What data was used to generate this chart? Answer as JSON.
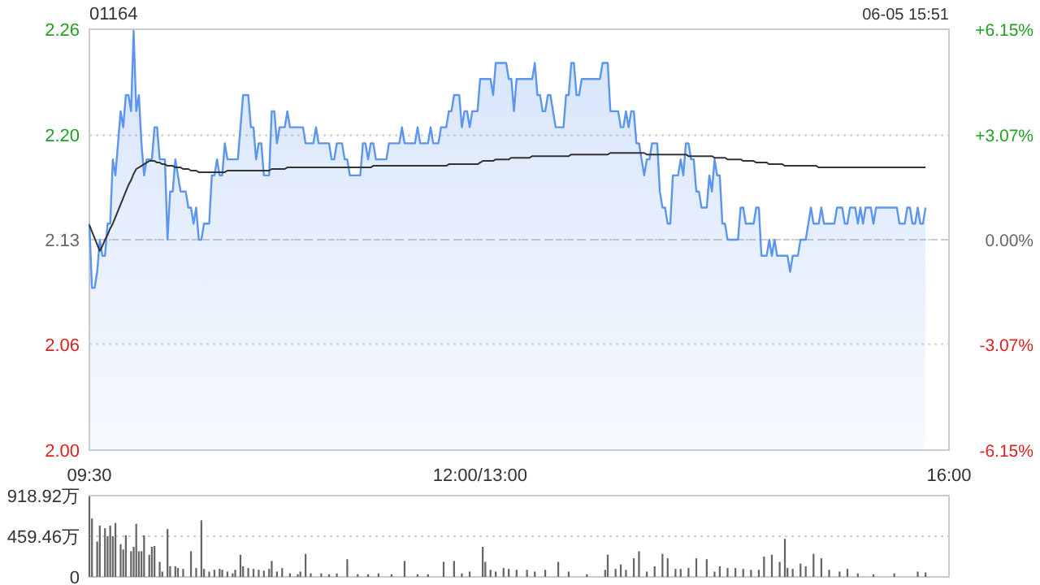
{
  "chart_data": [
    {
      "type": "area",
      "title": "01164",
      "annotations": [
        "06-05 15:51"
      ],
      "categories": [
        "09:30",
        null,
        null,
        null,
        null,
        null,
        null,
        null,
        null,
        null,
        null,
        null,
        null,
        null,
        null,
        null,
        null,
        null,
        null,
        null,
        null,
        null,
        null,
        null,
        null,
        null,
        null,
        null,
        null,
        null,
        null,
        null,
        null,
        null,
        null,
        null,
        null,
        null,
        null,
        null,
        null,
        null,
        null,
        null,
        null,
        null,
        null,
        null,
        null,
        null,
        null,
        null,
        null,
        null,
        null,
        null,
        null,
        null,
        null,
        null,
        null,
        null,
        null,
        null,
        null,
        null,
        null,
        null,
        null,
        null,
        null,
        null,
        null,
        null,
        null,
        null,
        null,
        null,
        null,
        null,
        null,
        null,
        null,
        null,
        null,
        null,
        null,
        null,
        null,
        null,
        null,
        null,
        null,
        null,
        null,
        null,
        null,
        null,
        null,
        null,
        null,
        null,
        null,
        null,
        null,
        null,
        null,
        null,
        null,
        null,
        null,
        null,
        null,
        null,
        null,
        null,
        null,
        null,
        null,
        null,
        null,
        null,
        null,
        null,
        null,
        null,
        null,
        null,
        null,
        null,
        null,
        null,
        null,
        null,
        null,
        null,
        null,
        null,
        null,
        null,
        null,
        null,
        null,
        null,
        null,
        null,
        null,
        null,
        null,
        null,
        "12:00/13:00",
        null,
        null,
        null,
        null,
        null,
        null,
        null,
        null,
        null,
        null,
        null,
        null,
        null,
        null,
        null,
        null,
        null,
        null,
        null,
        null,
        null,
        null,
        null,
        null,
        null,
        null,
        null,
        null,
        null,
        null,
        null,
        null,
        null,
        null,
        null,
        null,
        null,
        null,
        null,
        null,
        null,
        null,
        null,
        null,
        null,
        null,
        null,
        null,
        null,
        null,
        null,
        null,
        null,
        null,
        null,
        null,
        null,
        null,
        null,
        null,
        null,
        null,
        null,
        null,
        null,
        null,
        null,
        null,
        null,
        null,
        null,
        null,
        null,
        null,
        null,
        null,
        null,
        null,
        null,
        null,
        null,
        null,
        null,
        null,
        null,
        null,
        null,
        null,
        null,
        null,
        null,
        null,
        null,
        null,
        null,
        null,
        null,
        null,
        null,
        null,
        null,
        null,
        null,
        null,
        null,
        null,
        null,
        null,
        null,
        null,
        null,
        null,
        null,
        null,
        null,
        null,
        null,
        null,
        null,
        null,
        null,
        null,
        null,
        null,
        null,
        null,
        null,
        null,
        null,
        null,
        null,
        null,
        null,
        null,
        null,
        null,
        null,
        null,
        null,
        null,
        null,
        null,
        null,
        null,
        null,
        null,
        null,
        null,
        null,
        null,
        null,
        null,
        null,
        null,
        null,
        null,
        null,
        null,
        null,
        null,
        null,
        null,
        null,
        null,
        null,
        null,
        null,
        null,
        null,
        null,
        null,
        null,
        null,
        null,
        null,
        null,
        null,
        null,
        null,
        "16:00"
      ],
      "ylim": [
        1.999,
        2.261
      ],
      "yticks": [
        {
          "value": 1.999,
          "label": "2.00"
        },
        {
          "value": 2.065,
          "label": "2.06"
        },
        2.13,
        {
          "value": 2.195,
          "label": "2.20"
        },
        {
          "value": 2.261,
          "label": "2.26"
        }
      ],
      "y2lim": [
        -6.15,
        6.15
      ],
      "y2ticks": [
        {
          "value": -6.15,
          "label": "-6.15%"
        },
        {
          "value": -3.07,
          "label": "-3.07%"
        },
        {
          "value": 0,
          "label": "0.00%"
        },
        {
          "value": 3.07,
          "label": "+3.07%"
        },
        {
          "value": 6.15,
          "label": "+6.15%"
        }
      ],
      "ref_lines": [
        {
          "axis": "y",
          "value": 2.13,
          "line_style": "dashed",
          "color": "#cccccc"
        }
      ],
      "grid": "y",
      "series": [
        {
          "type": "area",
          "color": "#5b95ee",
          "values": [
            2.14,
            2.1,
            2.1,
            2.11,
            2.13,
            2.12,
            2.12,
            2.14,
            2.14,
            2.18,
            2.17,
            2.19,
            2.21,
            2.2,
            2.22,
            2.22,
            2.21,
            2.26,
            2.21,
            2.22,
            2.19,
            2.17,
            2.18,
            2.18,
            2.18,
            2.2,
            2.2,
            2.18,
            2.18,
            2.18,
            2.13,
            2.16,
            2.16,
            2.18,
            2.17,
            2.16,
            2.16,
            2.16,
            2.15,
            2.15,
            2.14,
            2.15,
            2.13,
            2.13,
            2.14,
            2.14,
            2.14,
            2.17,
            2.17,
            2.18,
            2.17,
            2.17,
            2.19,
            2.18,
            2.18,
            2.18,
            2.18,
            2.18,
            2.2,
            2.22,
            2.22,
            2.22,
            2.2,
            2.2,
            2.18,
            2.19,
            2.19,
            2.17,
            2.17,
            2.17,
            2.21,
            2.21,
            2.19,
            2.2,
            2.2,
            2.2,
            2.21,
            2.2,
            2.2,
            2.2,
            2.2,
            2.2,
            2.2,
            2.19,
            2.19,
            2.19,
            2.19,
            2.2,
            2.19,
            2.19,
            2.19,
            2.19,
            2.19,
            2.18,
            2.18,
            2.19,
            2.19,
            2.19,
            2.18,
            2.18,
            2.17,
            2.17,
            2.17,
            2.17,
            2.17,
            2.19,
            2.19,
            2.18,
            2.19,
            2.19,
            2.18,
            2.18,
            2.18,
            2.18,
            2.18,
            2.19,
            2.19,
            2.19,
            2.19,
            2.19,
            2.2,
            2.19,
            2.19,
            2.19,
            2.19,
            2.19,
            2.2,
            2.19,
            2.19,
            2.19,
            2.19,
            2.2,
            2.19,
            2.19,
            2.19,
            2.2,
            2.2,
            2.2,
            2.21,
            2.21,
            2.22,
            2.22,
            2.22,
            2.2,
            2.21,
            2.21,
            2.2,
            2.21,
            2.21,
            2.21,
            2.23,
            2.23,
            2.23,
            2.23,
            2.23,
            2.22,
            2.24,
            2.24,
            2.24,
            2.24,
            2.24,
            2.23,
            2.23,
            2.21,
            2.23,
            2.23,
            2.23,
            2.23,
            2.23,
            2.23,
            2.23,
            2.24,
            2.22,
            2.22,
            2.21,
            2.21,
            2.22,
            2.22,
            2.21,
            2.2,
            2.2,
            2.2,
            2.2,
            2.22,
            2.22,
            2.24,
            2.24,
            2.22,
            2.22,
            2.23,
            2.23,
            2.23,
            2.23,
            2.23,
            2.23,
            2.23,
            2.23,
            2.24,
            2.24,
            2.24,
            2.21,
            2.21,
            2.21,
            2.21,
            2.2,
            2.2,
            2.21,
            2.2,
            2.21,
            2.21,
            2.19,
            2.19,
            2.18,
            2.17,
            2.18,
            2.18,
            2.19,
            2.19,
            2.19,
            2.16,
            2.15,
            2.15,
            2.14,
            2.14,
            2.17,
            2.17,
            2.17,
            2.18,
            2.17,
            2.19,
            2.19,
            2.18,
            2.18,
            2.16,
            2.16,
            2.15,
            2.15,
            2.15,
            2.17,
            2.16,
            2.18,
            2.17,
            2.17,
            2.14,
            2.14,
            2.13,
            2.13,
            2.13,
            2.13,
            2.13,
            2.15,
            2.15,
            2.14,
            2.14,
            2.14,
            2.14,
            2.15,
            2.15,
            2.12,
            2.12,
            2.12,
            2.13,
            2.12,
            2.13,
            2.12,
            2.12,
            2.12,
            2.12,
            2.12,
            2.11,
            2.12,
            2.12,
            2.12,
            2.13,
            2.13,
            2.13,
            2.14,
            2.15,
            2.14,
            2.14,
            2.14,
            2.15,
            2.14,
            2.14,
            2.14,
            2.14,
            2.14,
            2.15,
            2.15,
            2.15,
            2.14,
            2.14,
            2.15,
            2.15,
            2.15,
            2.14,
            2.15,
            2.14,
            2.15,
            2.15,
            2.15,
            2.14,
            2.15,
            2.15,
            2.15,
            2.15,
            2.15,
            2.15,
            2.15,
            2.15,
            2.15,
            2.14,
            2.14,
            2.14,
            2.15,
            2.15,
            2.14,
            2.14,
            2.15,
            2.14,
            2.14,
            2.15,
            null,
            null,
            null,
            null,
            null,
            null,
            null,
            null,
            null
          ]
        },
        {
          "type": "line",
          "color": "#333333",
          "values": [
            2.139,
            2.135,
            2.131,
            2.127,
            2.123,
            2.126,
            2.13,
            2.133,
            2.137,
            2.14,
            2.144,
            2.148,
            2.152,
            2.156,
            2.16,
            2.164,
            2.167,
            2.171,
            2.174,
            2.175,
            2.176,
            2.177,
            2.178,
            2.179,
            2.179,
            2.179,
            2.178,
            2.178,
            2.177,
            2.177,
            2.176,
            2.176,
            2.176,
            2.175,
            2.175,
            2.175,
            2.174,
            2.174,
            2.174,
            2.173,
            2.173,
            2.173,
            2.172,
            2.172,
            2.172,
            2.172,
            2.172,
            2.172,
            2.172,
            2.172,
            2.172,
            2.172,
            2.172,
            2.173,
            2.173,
            2.173,
            2.173,
            2.173,
            2.173,
            2.173,
            2.173,
            2.173,
            2.173,
            2.173,
            2.173,
            2.173,
            2.173,
            2.173,
            2.173,
            2.173,
            2.174,
            2.174,
            2.174,
            2.174,
            2.174,
            2.174,
            2.175,
            2.175,
            2.175,
            2.175,
            2.175,
            2.175,
            2.175,
            2.175,
            2.175,
            2.175,
            2.175,
            2.175,
            2.175,
            2.175,
            2.175,
            2.175,
            2.175,
            2.175,
            2.175,
            2.175,
            2.175,
            2.175,
            2.175,
            2.175,
            2.175,
            2.175,
            2.175,
            2.175,
            2.175,
            2.175,
            2.175,
            2.175,
            2.175,
            2.176,
            2.176,
            2.176,
            2.176,
            2.176,
            2.176,
            2.176,
            2.176,
            2.176,
            2.176,
            2.176,
            2.176,
            2.176,
            2.176,
            2.176,
            2.176,
            2.176,
            2.176,
            2.176,
            2.176,
            2.176,
            2.176,
            2.176,
            2.176,
            2.176,
            2.176,
            2.176,
            2.176,
            2.176,
            2.177,
            2.177,
            2.177,
            2.177,
            2.177,
            2.177,
            2.177,
            2.177,
            2.177,
            2.177,
            2.177,
            2.177,
            2.178,
            2.179,
            2.179,
            2.179,
            2.179,
            2.179,
            2.18,
            2.18,
            2.18,
            2.18,
            2.18,
            2.18,
            2.181,
            2.181,
            2.181,
            2.181,
            2.181,
            2.181,
            2.181,
            2.181,
            2.182,
            2.182,
            2.182,
            2.182,
            2.182,
            2.182,
            2.182,
            2.182,
            2.182,
            2.182,
            2.182,
            2.182,
            2.182,
            2.182,
            2.182,
            2.183,
            2.183,
            2.183,
            2.183,
            2.183,
            2.183,
            2.183,
            2.183,
            2.183,
            2.183,
            2.183,
            2.183,
            2.183,
            2.183,
            2.183,
            2.184,
            2.184,
            2.184,
            2.184,
            2.184,
            2.184,
            2.184,
            2.184,
            2.184,
            2.184,
            2.184,
            2.184,
            2.184,
            2.184,
            2.183,
            2.183,
            2.183,
            2.183,
            2.183,
            2.183,
            2.183,
            2.183,
            2.183,
            2.183,
            2.183,
            2.183,
            2.183,
            2.183,
            2.183,
            2.183,
            2.182,
            2.182,
            2.182,
            2.182,
            2.182,
            2.182,
            2.182,
            2.182,
            2.182,
            2.182,
            2.181,
            2.181,
            2.181,
            2.181,
            2.181,
            2.18,
            2.18,
            2.18,
            2.18,
            2.18,
            2.18,
            2.179,
            2.179,
            2.179,
            2.179,
            2.179,
            2.178,
            2.178,
            2.178,
            2.178,
            2.178,
            2.177,
            2.177,
            2.177,
            2.177,
            2.177,
            2.177,
            2.176,
            2.176,
            2.176,
            2.176,
            2.176,
            2.176,
            2.176,
            2.176,
            2.176,
            2.176,
            2.176,
            2.176,
            2.176,
            2.175,
            2.175,
            2.175,
            2.175,
            2.175,
            2.175,
            2.175,
            2.175,
            2.175,
            2.175,
            2.175,
            2.175,
            2.175,
            2.175,
            2.175,
            2.175,
            2.175,
            2.175,
            2.175,
            2.175,
            2.175,
            2.175,
            2.175,
            2.175,
            2.175,
            2.175,
            2.175,
            2.175,
            2.175,
            2.175,
            2.175,
            2.175,
            2.175,
            2.175,
            2.175,
            2.175,
            2.175,
            2.175,
            2.175,
            2.175,
            2.175,
            2.175,
            null,
            null,
            null,
            null,
            null,
            null,
            null,
            null,
            null
          ]
        }
      ]
    },
    {
      "type": "bar",
      "color": "#666666",
      "grid": "y",
      "tick_labels": "y",
      "ylim": [
        0,
        918.92
      ],
      "yticks": [
        0,
        {
          "value": 459.46,
          "label": "459.46万"
        },
        {
          "value": 918.92,
          "label": "918.92万"
        }
      ],
      "categories": [
        null,
        null,
        null,
        null,
        null,
        null,
        null,
        null,
        null,
        null,
        null,
        null,
        null,
        null,
        null,
        null,
        null,
        null,
        null,
        null,
        null,
        null,
        null,
        null,
        null,
        null,
        null,
        null,
        null,
        null,
        null,
        null,
        null,
        null,
        null,
        null,
        null,
        null,
        null,
        null,
        null,
        null,
        null,
        null,
        null,
        null,
        null,
        null,
        null,
        null,
        null,
        null,
        null,
        null,
        null,
        null,
        null,
        null,
        null,
        null,
        null,
        null,
        null,
        null,
        null,
        null,
        null,
        null,
        null,
        null,
        null,
        null,
        null,
        null,
        null,
        null,
        null,
        null,
        null,
        null,
        null,
        null,
        null,
        null,
        null,
        null,
        null,
        null,
        null,
        null,
        null,
        null,
        null,
        null,
        null,
        null,
        null,
        null,
        null,
        null,
        null,
        null,
        null,
        null,
        null,
        null,
        null,
        null,
        null,
        null,
        null,
        null,
        null,
        null,
        null,
        null,
        null,
        null,
        null,
        null,
        null,
        null,
        null,
        null,
        null,
        null,
        null,
        null,
        null,
        null,
        null,
        null,
        null,
        null,
        null,
        null,
        null,
        null,
        null,
        null,
        null,
        null,
        null,
        null,
        null,
        null,
        null,
        null,
        null,
        null,
        null,
        null,
        null,
        null,
        null,
        null,
        null,
        null,
        null,
        null,
        null,
        null,
        null,
        null,
        null,
        null,
        null,
        null,
        null,
        null,
        null,
        null,
        null,
        null,
        null,
        null,
        null,
        null,
        null,
        null,
        null,
        null,
        null,
        null,
        null,
        null,
        null,
        null,
        null,
        null,
        null,
        null,
        null,
        null,
        null,
        null,
        null,
        null,
        null,
        null,
        null,
        null,
        null,
        null,
        null,
        null,
        null,
        null,
        null,
        null,
        null,
        null,
        null,
        null,
        null,
        null,
        null,
        null,
        null,
        null,
        null,
        null,
        null,
        null,
        null,
        null,
        null,
        null,
        null,
        null,
        null,
        null,
        null,
        null,
        null,
        null,
        null,
        null,
        null,
        null,
        null,
        null,
        null,
        null,
        null,
        null,
        null,
        null,
        null,
        null,
        null,
        null,
        null,
        null,
        null,
        null,
        null,
        null,
        null,
        null,
        null,
        null,
        null,
        null,
        null,
        null,
        null,
        null,
        null,
        null,
        null,
        null,
        null,
        null,
        null,
        null,
        null,
        null,
        null,
        null,
        null,
        null,
        null,
        null,
        null,
        null,
        null,
        null,
        null,
        null,
        null,
        null,
        null,
        null,
        null,
        null,
        null,
        null,
        null,
        null,
        null,
        null,
        null,
        null,
        null,
        null,
        null,
        null,
        null,
        null,
        null,
        null,
        null,
        null,
        null,
        null,
        null,
        null,
        null,
        null,
        null,
        null,
        null,
        null,
        null,
        null,
        null,
        null,
        null,
        null,
        null
      ],
      "values": [
        910,
        660,
        null,
        400,
        580,
        null,
        550,
        460,
        580,
        460,
        610,
        null,
        370,
        310,
        470,
        null,
        290,
        340,
        600,
        290,
        290,
        470,
        null,
        250,
        340,
        350,
        null,
        170,
        60,
        null,
        540,
        120,
        null,
        120,
        100,
        null,
        90,
        null,
        null,
        290,
        null,
        100,
        null,
        640,
        90,
        null,
        60,
        null,
        80,
        null,
        90,
        80,
        null,
        60,
        null,
        40,
        80,
        null,
        250,
        120,
        null,
        100,
        null,
        90,
        null,
        80,
        null,
        70,
        null,
        90,
        180,
        null,
        60,
        null,
        100,
        null,
        null,
        40,
        null,
        null,
        30,
        60,
        null,
        260,
        null,
        40,
        null,
        null,
        null,
        40,
        null,
        null,
        30,
        null,
        null,
        40,
        null,
        null,
        null,
        200,
        null,
        null,
        null,
        30,
        null,
        null,
        null,
        30,
        null,
        null,
        null,
        40,
        null,
        null,
        null,
        null,
        30,
        null,
        null,
        null,
        null,
        180,
        null,
        null,
        null,
        null,
        30,
        null,
        null,
        null,
        30,
        null,
        null,
        null,
        null,
        null,
        170,
        null,
        null,
        null,
        180,
        null,
        null,
        40,
        null,
        null,
        60,
        null,
        null,
        null,
        null,
        340,
        170,
        null,
        80,
        null,
        60,
        null,
        null,
        100,
        null,
        90,
        null,
        null,
        80,
        null,
        null,
        null,
        80,
        null,
        null,
        60,
        null,
        null,
        null,
        80,
        null,
        null,
        null,
        null,
        170,
        null,
        null,
        null,
        60,
        null,
        null,
        null,
        null,
        null,
        null,
        30,
        null,
        null,
        null,
        null,
        null,
        null,
        80,
        250,
        null,
        null,
        90,
        null,
        140,
        null,
        80,
        null,
        null,
        210,
        null,
        290,
        null,
        null,
        60,
        null,
        null,
        120,
        null,
        null,
        260,
        null,
        210,
        null,
        null,
        90,
        null,
        90,
        null,
        null,
        100,
        null,
        null,
        210,
        null,
        null,
        null,
        200,
        null,
        null,
        60,
        null,
        120,
        null,
        null,
        100,
        null,
        null,
        100,
        null,
        null,
        90,
        null,
        null,
        80,
        null,
        null,
        80,
        null,
        230,
        null,
        null,
        250,
        null,
        null,
        170,
        null,
        430,
        100,
        null,
        90,
        null,
        null,
        150,
        null,
        120,
        null,
        null,
        260,
        null,
        null,
        210,
        null,
        null,
        80,
        null,
        null,
        null,
        60,
        null,
        null,
        90,
        null,
        null,
        null,
        40,
        null,
        null,
        null,
        null,
        null,
        30,
        null,
        null,
        null,
        null,
        null,
        null,
        null,
        40,
        null,
        null,
        null,
        null,
        null,
        null,
        null,
        null,
        60,
        null,
        null,
        50,
        null,
        null,
        null,
        null,
        null,
        null,
        null,
        null,
        null
      ]
    }
  ]
}
